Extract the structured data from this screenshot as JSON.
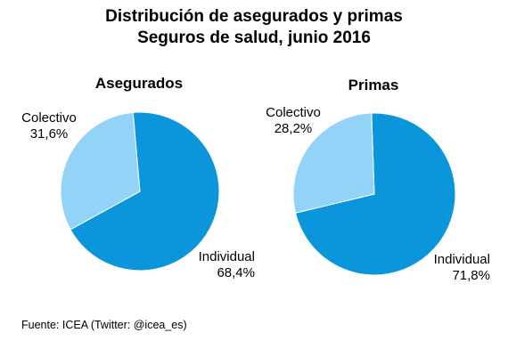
{
  "title_line1": "Distribución  de asegurados y primas",
  "title_line2": "Seguros de salud, junio 2016",
  "source": "Fuente: ICEA (Twitter:  @icea_es)",
  "colors": {
    "colectivo": "#93D3F7",
    "individual": "#0B96DC"
  },
  "chart_data": [
    {
      "type": "pie",
      "title": "Asegurados",
      "slices": [
        {
          "label": "Colectivo",
          "value": 31.6,
          "value_label": "31,6%"
        },
        {
          "label": "Individual",
          "value": 68.4,
          "value_label": "68,4%"
        }
      ]
    },
    {
      "type": "pie",
      "title": "Primas",
      "slices": [
        {
          "label": "Colectivo",
          "value": 28.2,
          "value_label": "28,2%"
        },
        {
          "label": "Individual",
          "value": 71.8,
          "value_label": "71,8%"
        }
      ]
    }
  ]
}
